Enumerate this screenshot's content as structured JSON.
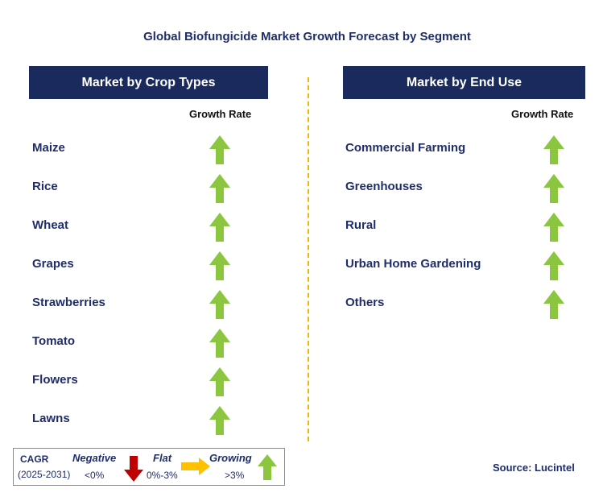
{
  "title": "Global Biofungicide Market Growth Forecast by Segment",
  "chart_data": {
    "type": "table",
    "title": "Global Biofungicide Market Growth Forecast by Segment",
    "panels": [
      {
        "header": "Market by Crop Types",
        "column_header": "Growth Rate",
        "rows": [
          {
            "label": "Maize",
            "growth": "Growing"
          },
          {
            "label": "Rice",
            "growth": "Growing"
          },
          {
            "label": "Wheat",
            "growth": "Growing"
          },
          {
            "label": "Grapes",
            "growth": "Growing"
          },
          {
            "label": "Strawberries",
            "growth": "Growing"
          },
          {
            "label": "Tomato",
            "growth": "Growing"
          },
          {
            "label": "Flowers",
            "growth": "Growing"
          },
          {
            "label": "Lawns",
            "growth": "Growing"
          }
        ]
      },
      {
        "header": "Market by End Use",
        "column_header": "Growth Rate",
        "rows": [
          {
            "label": "Commercial Farming",
            "growth": "Growing"
          },
          {
            "label": "Greenhouses",
            "growth": "Growing"
          },
          {
            "label": "Rural",
            "growth": "Growing"
          },
          {
            "label": "Urban Home Gardening",
            "growth": "Growing"
          },
          {
            "label": "Others",
            "growth": "Growing"
          }
        ]
      }
    ]
  },
  "legend": {
    "cagr_label": "CAGR",
    "period": "(2025-2031)",
    "negative_label": "Negative",
    "negative_range": "<0%",
    "flat_label": "Flat",
    "flat_range": "0%-3%",
    "growing_label": "Growing",
    "growing_range": ">3%"
  },
  "colors": {
    "header_bg": "#1b2a5c",
    "label_text": "#1f2d6b",
    "growing": "#8cc63f",
    "negative": "#c00000",
    "flat": "#ffc000",
    "divider": "#f5b400"
  },
  "source": "Source: Lucintel"
}
